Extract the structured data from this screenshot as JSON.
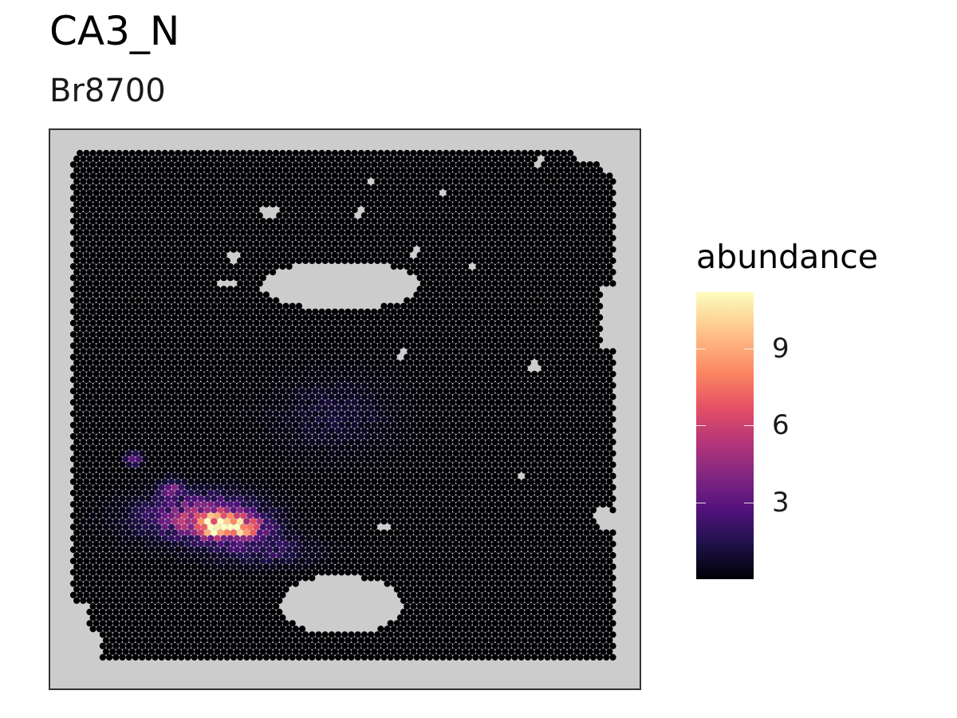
{
  "chart_data": {
    "type": "scatter",
    "title": "CA3_N",
    "subtitle": "Br8700",
    "panel_background": "#cccccc",
    "spot_color_low": "#000004",
    "spot_color_high": "#fcfdbf",
    "colormap": "magma",
    "grid": false,
    "axes_visible": false,
    "legend": {
      "title": "abundance",
      "placement": "right",
      "ticks": [
        3,
        6,
        9
      ],
      "range": [
        0,
        11.2
      ]
    }
  }
}
